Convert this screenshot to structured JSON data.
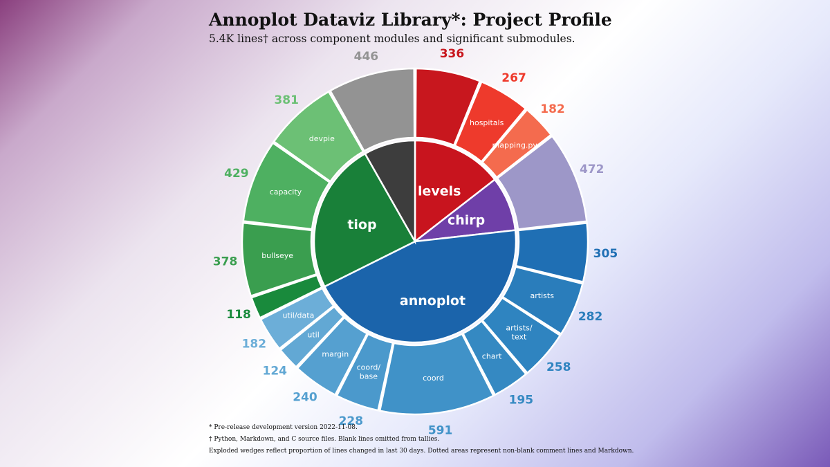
{
  "header": {
    "title": "Annoplot Dataviz Library*: Project Profile",
    "subtitle": "5.4K lines† across component modules and significant submodules."
  },
  "footnotes": [
    "* Pre-release development version 2022-11-08.",
    "† Python, Markdown, and C source files. Blank lines omitted from tallies.",
    "Exploded wedges reflect proportion of lines changed in last 30 days. Dotted areas represent non-blank comment lines and Markdown."
  ],
  "chart_data": {
    "type": "sunburst",
    "title": "Annoplot Dataviz Library*: Project Profile",
    "modules": [
      {
        "name": "levels",
        "color": "#c8141e",
        "segments": [
          {
            "name": "",
            "value": 336,
            "color": "#c8171e"
          },
          {
            "name": "hospitals",
            "value": 267,
            "color": "#ee3a2c"
          },
          {
            "name": "mapping.py",
            "value": 182,
            "color": "#f46b4e"
          }
        ]
      },
      {
        "name": "chirp",
        "color": "#6f3fa8",
        "segments": [
          {
            "name": "",
            "value": 472,
            "color": "#9d97c8"
          }
        ]
      },
      {
        "name": "annoplot",
        "color": "#1b64ab",
        "segments": [
          {
            "name": "",
            "value": 305,
            "color": "#1f6fb4"
          },
          {
            "name": "artists",
            "value": 282,
            "color": "#2a7dbb"
          },
          {
            "name": "artists/ text",
            "value": 258,
            "color": "#2f84c0"
          },
          {
            "name": "chart",
            "value": 195,
            "color": "#3589c2"
          },
          {
            "name": "coord",
            "value": 591,
            "color": "#4092c8"
          },
          {
            "name": "coord/ base",
            "value": 228,
            "color": "#4b99cc"
          },
          {
            "name": "margin",
            "value": 240,
            "color": "#55a0d0"
          },
          {
            "name": "util",
            "value": 124,
            "color": "#62a8d4"
          },
          {
            "name": "util/data",
            "value": 182,
            "color": "#6caed8"
          }
        ]
      },
      {
        "name": "tiop",
        "color": "#198039",
        "segments": [
          {
            "name": "",
            "value": 118,
            "color": "#198a3c"
          },
          {
            "name": "bullseye",
            "value": 378,
            "color": "#3a9e4f"
          },
          {
            "name": "capacity",
            "value": 429,
            "color": "#4eb061"
          },
          {
            "name": "devpie",
            "value": 381,
            "color": "#6cc075"
          }
        ]
      },
      {
        "name": "",
        "color": "#3d3d3d",
        "segments": [
          {
            "name": "",
            "value": 446,
            "color": "#939393"
          }
        ]
      }
    ]
  }
}
